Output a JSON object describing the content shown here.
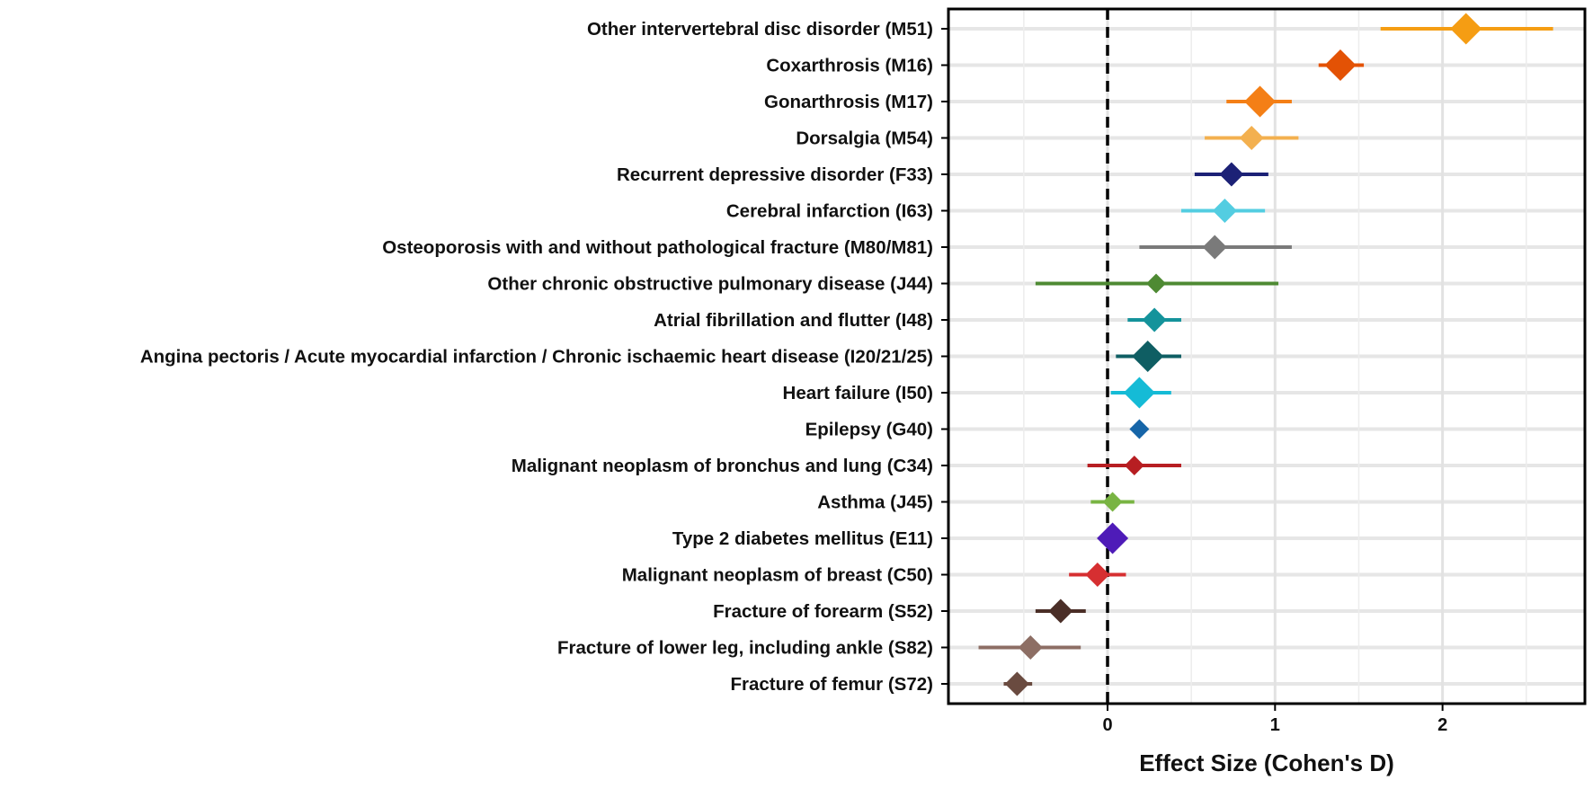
{
  "chart_data": {
    "type": "forest",
    "xlabel": "Effect Size (Cohen's D)",
    "ylabel": "",
    "xlim": [
      -0.95,
      2.85
    ],
    "xticks": [
      0,
      1,
      2
    ],
    "xtick_labels": [
      "0",
      "1",
      "2"
    ],
    "grid": true,
    "reference_line": 0,
    "rows": [
      {
        "label": "Other intervertebral disc disorder (M51)",
        "estimate": 2.14,
        "ci_low": 1.63,
        "ci_high": 2.66,
        "color": "#F59D13",
        "marker": "large"
      },
      {
        "label": "Coxarthrosis (M16)",
        "estimate": 1.39,
        "ci_low": 1.26,
        "ci_high": 1.53,
        "color": "#E35205",
        "marker": "large"
      },
      {
        "label": "Gonarthrosis (M17)",
        "estimate": 0.91,
        "ci_low": 0.71,
        "ci_high": 1.1,
        "color": "#F47F16",
        "marker": "large"
      },
      {
        "label": "Dorsalgia (M54)",
        "estimate": 0.86,
        "ci_low": 0.58,
        "ci_high": 1.14,
        "color": "#F3B04F",
        "marker": "medium"
      },
      {
        "label": "Recurrent depressive disorder (F33)",
        "estimate": 0.74,
        "ci_low": 0.52,
        "ci_high": 0.96,
        "color": "#1C2176",
        "marker": "medium"
      },
      {
        "label": "Cerebral infarction (I63)",
        "estimate": 0.7,
        "ci_low": 0.44,
        "ci_high": 0.94,
        "color": "#53CDE1",
        "marker": "medium"
      },
      {
        "label": "Osteoporosis with and without pathological fracture (M80/M81)",
        "estimate": 0.64,
        "ci_low": 0.19,
        "ci_high": 1.1,
        "color": "#7A7A7A",
        "marker": "medium"
      },
      {
        "label": "Other chronic obstructive pulmonary disease (J44)",
        "estimate": 0.29,
        "ci_low": -0.43,
        "ci_high": 1.02,
        "color": "#4E8A33",
        "marker": "small"
      },
      {
        "label": "Atrial fibrillation and flutter (I48)",
        "estimate": 0.28,
        "ci_low": 0.12,
        "ci_high": 0.44,
        "color": "#14939B",
        "marker": "medium"
      },
      {
        "label": "Angina pectoris / Acute myocardial infarction / Chronic ischaemic heart disease (I20/21/25)",
        "estimate": 0.24,
        "ci_low": 0.05,
        "ci_high": 0.44,
        "color": "#0F5E63",
        "marker": "large"
      },
      {
        "label": "Heart failure (I50)",
        "estimate": 0.19,
        "ci_low": 0.02,
        "ci_high": 0.38,
        "color": "#15BBD6",
        "marker": "large"
      },
      {
        "label": "Epilepsy (G40)",
        "estimate": 0.19,
        "ci_low": 0.19,
        "ci_high": 0.19,
        "color": "#1665A8",
        "marker": "small"
      },
      {
        "label": "Malignant neoplasm of bronchus and lung (C34)",
        "estimate": 0.16,
        "ci_low": -0.12,
        "ci_high": 0.44,
        "color": "#B71E22",
        "marker": "small"
      },
      {
        "label": "Asthma (J45)",
        "estimate": 0.03,
        "ci_low": -0.1,
        "ci_high": 0.16,
        "color": "#79B443",
        "marker": "small"
      },
      {
        "label": "Type 2 diabetes mellitus (E11)",
        "estimate": 0.03,
        "ci_low": 0.03,
        "ci_high": 0.03,
        "color": "#4E1BB8",
        "marker": "large"
      },
      {
        "label": "Malignant neoplasm of breast (C50)",
        "estimate": -0.06,
        "ci_low": -0.23,
        "ci_high": 0.11,
        "color": "#D62F31",
        "marker": "medium"
      },
      {
        "label": "Fracture of forearm (S52)",
        "estimate": -0.28,
        "ci_low": -0.43,
        "ci_high": -0.13,
        "color": "#4A2E27",
        "marker": "medium"
      },
      {
        "label": "Fracture of lower leg, including ankle (S82)",
        "estimate": -0.46,
        "ci_low": -0.77,
        "ci_high": -0.16,
        "color": "#8D6E64",
        "marker": "medium"
      },
      {
        "label": "Fracture of femur (S72)",
        "estimate": -0.54,
        "ci_low": -0.62,
        "ci_high": -0.45,
        "color": "#6A4B40",
        "marker": "medium"
      }
    ]
  }
}
